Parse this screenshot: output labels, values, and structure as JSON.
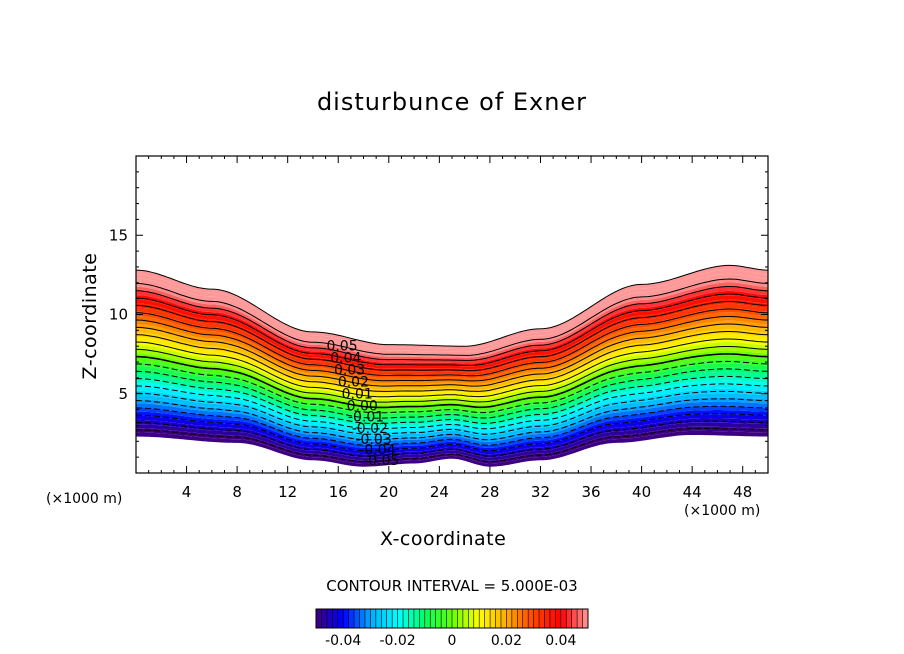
{
  "chart_data": {
    "type": "contour",
    "title": "disturbunce of Exner",
    "xlabel": "X-coordinate",
    "ylabel": "Z-coordinate",
    "x_unit": "(×1000 m)",
    "z_unit": "(×1000 m)",
    "xlim": [
      0,
      50
    ],
    "ylim": [
      0,
      20
    ],
    "x_ticks": [
      4,
      8,
      12,
      16,
      20,
      24,
      28,
      32,
      36,
      40,
      44,
      48
    ],
    "y_ticks": [
      5,
      10,
      15
    ],
    "contour_interval_label": "CONTOUR INTERVAL = 5.000E-03",
    "contour_levels": [
      -0.05,
      -0.045,
      -0.04,
      -0.035,
      -0.03,
      -0.025,
      -0.02,
      -0.015,
      -0.01,
      -0.005,
      0,
      0.005,
      0.01,
      0.015,
      0.02,
      0.025,
      0.03,
      0.035,
      0.04,
      0.045,
      0.05
    ],
    "contour_labels": [
      "0.05",
      "0.04",
      "0.03",
      "0.02",
      "0.01",
      "0.00",
      "-0.01",
      "-0.02",
      "-0.03",
      "-0.04",
      "-0.05"
    ],
    "colorbar_range": [
      -0.05,
      0.05
    ],
    "colorbar_ticks": [
      "-0.04",
      "-0.02",
      "0",
      "0.02",
      "0.04"
    ],
    "top_boundary_z": [
      [
        0,
        12.8
      ],
      [
        6,
        11.6
      ],
      [
        14,
        8.9
      ],
      [
        20,
        8.1
      ],
      [
        26,
        8.0
      ],
      [
        32,
        9.1
      ],
      [
        40,
        11.9
      ],
      [
        47,
        13.1
      ],
      [
        50,
        12.8
      ]
    ],
    "bottom_boundary_z": [
      [
        0,
        2.3
      ],
      [
        8,
        1.9
      ],
      [
        14,
        0.8
      ],
      [
        18,
        0.4
      ],
      [
        22,
        0.6
      ],
      [
        25,
        0.9
      ],
      [
        28,
        0.4
      ],
      [
        32,
        0.8
      ],
      [
        38,
        1.9
      ],
      [
        44,
        2.4
      ],
      [
        50,
        2.3
      ]
    ],
    "colormap": [
      "#3d0080",
      "#0000ff",
      "#00aaff",
      "#00ffff",
      "#00ff66",
      "#66ff00",
      "#ffff00",
      "#ffaa00",
      "#ff4400",
      "#ff0000",
      "#ff9999"
    ]
  }
}
